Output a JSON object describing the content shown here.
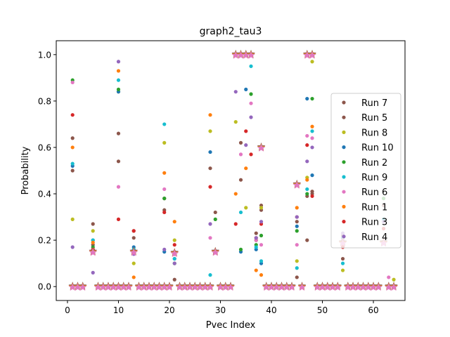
{
  "chart_data": {
    "type": "scatter",
    "title": "graph2_tau3",
    "xlabel": "Pvec Index",
    "ylabel": "Probability",
    "xlim": [
      -2.2,
      66.2
    ],
    "ylim": [
      -0.06,
      1.06
    ],
    "xticks": [
      "0",
      "10",
      "20",
      "30",
      "40",
      "50",
      "60"
    ],
    "yticks": [
      "0.0",
      "0.2",
      "0.4",
      "0.6",
      "0.8",
      "1.0"
    ],
    "grid": false,
    "legend_position": "right",
    "zero_indices": [
      1,
      2,
      3,
      6,
      7,
      8,
      9,
      10,
      11,
      12,
      14,
      15,
      16,
      17,
      18,
      19,
      20,
      22,
      23,
      24,
      25,
      26,
      27,
      28,
      30,
      31,
      32,
      39,
      40,
      41,
      42,
      43,
      44,
      46,
      49,
      50,
      51,
      52,
      53,
      55,
      56,
      57,
      58,
      59,
      60,
      61,
      63,
      64
    ],
    "star_points": [
      {
        "x": 5,
        "y": 0.15
      },
      {
        "x": 13,
        "y": 0.15
      },
      {
        "x": 21,
        "y": 0.145
      },
      {
        "x": 29,
        "y": 0.15
      },
      {
        "x": 33,
        "y": 1.0
      },
      {
        "x": 34,
        "y": 1.0
      },
      {
        "x": 35,
        "y": 1.0
      },
      {
        "x": 36,
        "y": 1.0
      },
      {
        "x": 38,
        "y": 0.6
      },
      {
        "x": 45,
        "y": 0.44
      },
      {
        "x": 47,
        "y": 1.0
      },
      {
        "x": 48,
        "y": 1.0
      },
      {
        "x": 54,
        "y": 0.19
      },
      {
        "x": 62,
        "y": 0.19
      }
    ],
    "series": [
      {
        "name": "Run 7",
        "color": "#8c564b",
        "points": [
          [
            1,
            0.64
          ],
          [
            5,
            0.27
          ],
          [
            10,
            0.54
          ],
          [
            13,
            0.24
          ],
          [
            19,
            0.38
          ],
          [
            21,
            0.03
          ],
          [
            29,
            0.32
          ],
          [
            34,
            0.46
          ],
          [
            37,
            0.23
          ],
          [
            38,
            0.35
          ],
          [
            45,
            0.04
          ],
          [
            47,
            0.2
          ],
          [
            48,
            0.41
          ],
          [
            54,
            0.22
          ],
          [
            62,
            0.35
          ]
        ]
      },
      {
        "name": "Run 5",
        "color": "#8c564b",
        "points": [
          [
            1,
            0.5
          ],
          [
            5,
            0.18
          ],
          [
            10,
            0.66
          ],
          [
            13,
            0.21
          ],
          [
            19,
            0.33
          ],
          [
            21,
            0.14
          ],
          [
            28,
            0.51
          ],
          [
            34,
            0.62
          ],
          [
            37,
            0.2
          ],
          [
            38,
            0.33
          ],
          [
            45,
            0.28
          ],
          [
            47,
            0.39
          ],
          [
            48,
            0.4
          ],
          [
            54,
            0.12
          ],
          [
            62,
            0.19
          ]
        ]
      },
      {
        "name": "Run 8",
        "color": "#bcbd22",
        "points": [
          [
            1,
            0.29
          ],
          [
            5,
            0.24
          ],
          [
            10,
            0.84
          ],
          [
            13,
            0.1
          ],
          [
            19,
            0.62
          ],
          [
            21,
            0.2
          ],
          [
            28,
            0.67
          ],
          [
            33,
            0.71
          ],
          [
            35,
            0.34
          ],
          [
            37,
            0.2
          ],
          [
            38,
            0.34
          ],
          [
            45,
            0.11
          ],
          [
            47,
            0.47
          ],
          [
            48,
            0.97
          ],
          [
            54,
            0.07
          ],
          [
            64,
            0.03
          ]
        ]
      },
      {
        "name": "Run 10",
        "color": "#1f77b4",
        "points": [
          [
            1,
            0.52
          ],
          [
            5,
            0.2
          ],
          [
            10,
            0.84
          ],
          [
            13,
            0.17
          ],
          [
            19,
            0.15
          ],
          [
            21,
            0.12
          ],
          [
            28,
            0.58
          ],
          [
            34,
            0.15
          ],
          [
            35,
            0.85
          ],
          [
            37,
            0.16
          ],
          [
            38,
            0.1
          ],
          [
            45,
            0.26
          ],
          [
            47,
            0.81
          ],
          [
            48,
            0.48
          ],
          [
            54,
            0.21
          ]
        ]
      },
      {
        "name": "Run 2",
        "color": "#2ca02c",
        "points": [
          [
            1,
            0.89
          ],
          [
            5,
            0.17
          ],
          [
            10,
            0.85
          ],
          [
            13,
            0.16
          ],
          [
            19,
            0.38
          ],
          [
            21,
            0.1
          ],
          [
            29,
            0.29
          ],
          [
            34,
            0.16
          ],
          [
            36,
            0.83
          ],
          [
            37,
            0.18
          ],
          [
            38,
            0.22
          ],
          [
            45,
            0.24
          ],
          [
            47,
            0.4
          ],
          [
            48,
            0.81
          ],
          [
            54,
            0.19
          ],
          [
            62,
            0.38
          ]
        ]
      },
      {
        "name": "Run 9",
        "color": "#17becf",
        "points": [
          [
            1,
            0.53
          ],
          [
            5,
            0.2
          ],
          [
            10,
            0.89
          ],
          [
            13,
            0.16
          ],
          [
            19,
            0.7
          ],
          [
            21,
            0.12
          ],
          [
            28,
            0.05
          ],
          [
            34,
            0.32
          ],
          [
            36,
            0.95
          ],
          [
            37,
            0.17
          ],
          [
            38,
            0.11
          ],
          [
            45,
            0.08
          ],
          [
            47,
            0.42
          ],
          [
            48,
            0.67
          ],
          [
            54,
            0.1
          ],
          [
            62,
            0.29
          ]
        ]
      },
      {
        "name": "Run 6",
        "color": "#e377c2",
        "points": [
          [
            1,
            0.88
          ],
          [
            5,
            0.16
          ],
          [
            10,
            0.43
          ],
          [
            13,
            0.15
          ],
          [
            19,
            0.42
          ],
          [
            21,
            0.15
          ],
          [
            28,
            0.21
          ],
          [
            34,
            0.57
          ],
          [
            36,
            0.79
          ],
          [
            37,
            0.2
          ],
          [
            38,
            0.18
          ],
          [
            45,
            0.18
          ],
          [
            47,
            0.65
          ],
          [
            48,
            0.64
          ],
          [
            54,
            0.2
          ],
          [
            63,
            0.04
          ]
        ]
      },
      {
        "name": "Run 1",
        "color": "#ff7f0e",
        "points": [
          [
            1,
            0.6
          ],
          [
            5,
            0.19
          ],
          [
            10,
            0.93
          ],
          [
            13,
            0.04
          ],
          [
            19,
            0.49
          ],
          [
            21,
            0.28
          ],
          [
            28,
            0.74
          ],
          [
            33,
            0.4
          ],
          [
            35,
            0.51
          ],
          [
            37,
            0.07
          ],
          [
            38,
            0.05
          ],
          [
            45,
            0.34
          ],
          [
            47,
            0.46
          ],
          [
            48,
            0.69
          ],
          [
            54,
            0.18
          ]
        ]
      },
      {
        "name": "Run 3",
        "color": "#d62728",
        "points": [
          [
            1,
            0.74
          ],
          [
            5,
            0.16
          ],
          [
            10,
            0.29
          ],
          [
            13,
            0.24
          ],
          [
            19,
            0.32
          ],
          [
            21,
            0.18
          ],
          [
            28,
            0.43
          ],
          [
            33,
            0.27
          ],
          [
            35,
            0.67
          ],
          [
            36,
            0.57
          ],
          [
            37,
            0.21
          ],
          [
            38,
            0.27
          ],
          [
            45,
            0.3
          ],
          [
            47,
            0.61
          ],
          [
            48,
            0.39
          ],
          [
            54,
            0.17
          ],
          [
            62,
            0.25
          ]
        ]
      },
      {
        "name": "Run 4",
        "color": "#9467bd",
        "points": [
          [
            1,
            0.17
          ],
          [
            5,
            0.06
          ],
          [
            10,
            0.97
          ],
          [
            13,
            0.14
          ],
          [
            19,
            0.16
          ],
          [
            21,
            0.1
          ],
          [
            28,
            0.27
          ],
          [
            33,
            0.84
          ],
          [
            35,
            0.61
          ],
          [
            36,
            0.73
          ],
          [
            37,
            0.21
          ],
          [
            38,
            0.28
          ],
          [
            45,
            0.3
          ],
          [
            47,
            0.54
          ],
          [
            48,
            0.6
          ],
          [
            54,
            0.23
          ],
          [
            62,
            0.28
          ]
        ]
      }
    ]
  }
}
